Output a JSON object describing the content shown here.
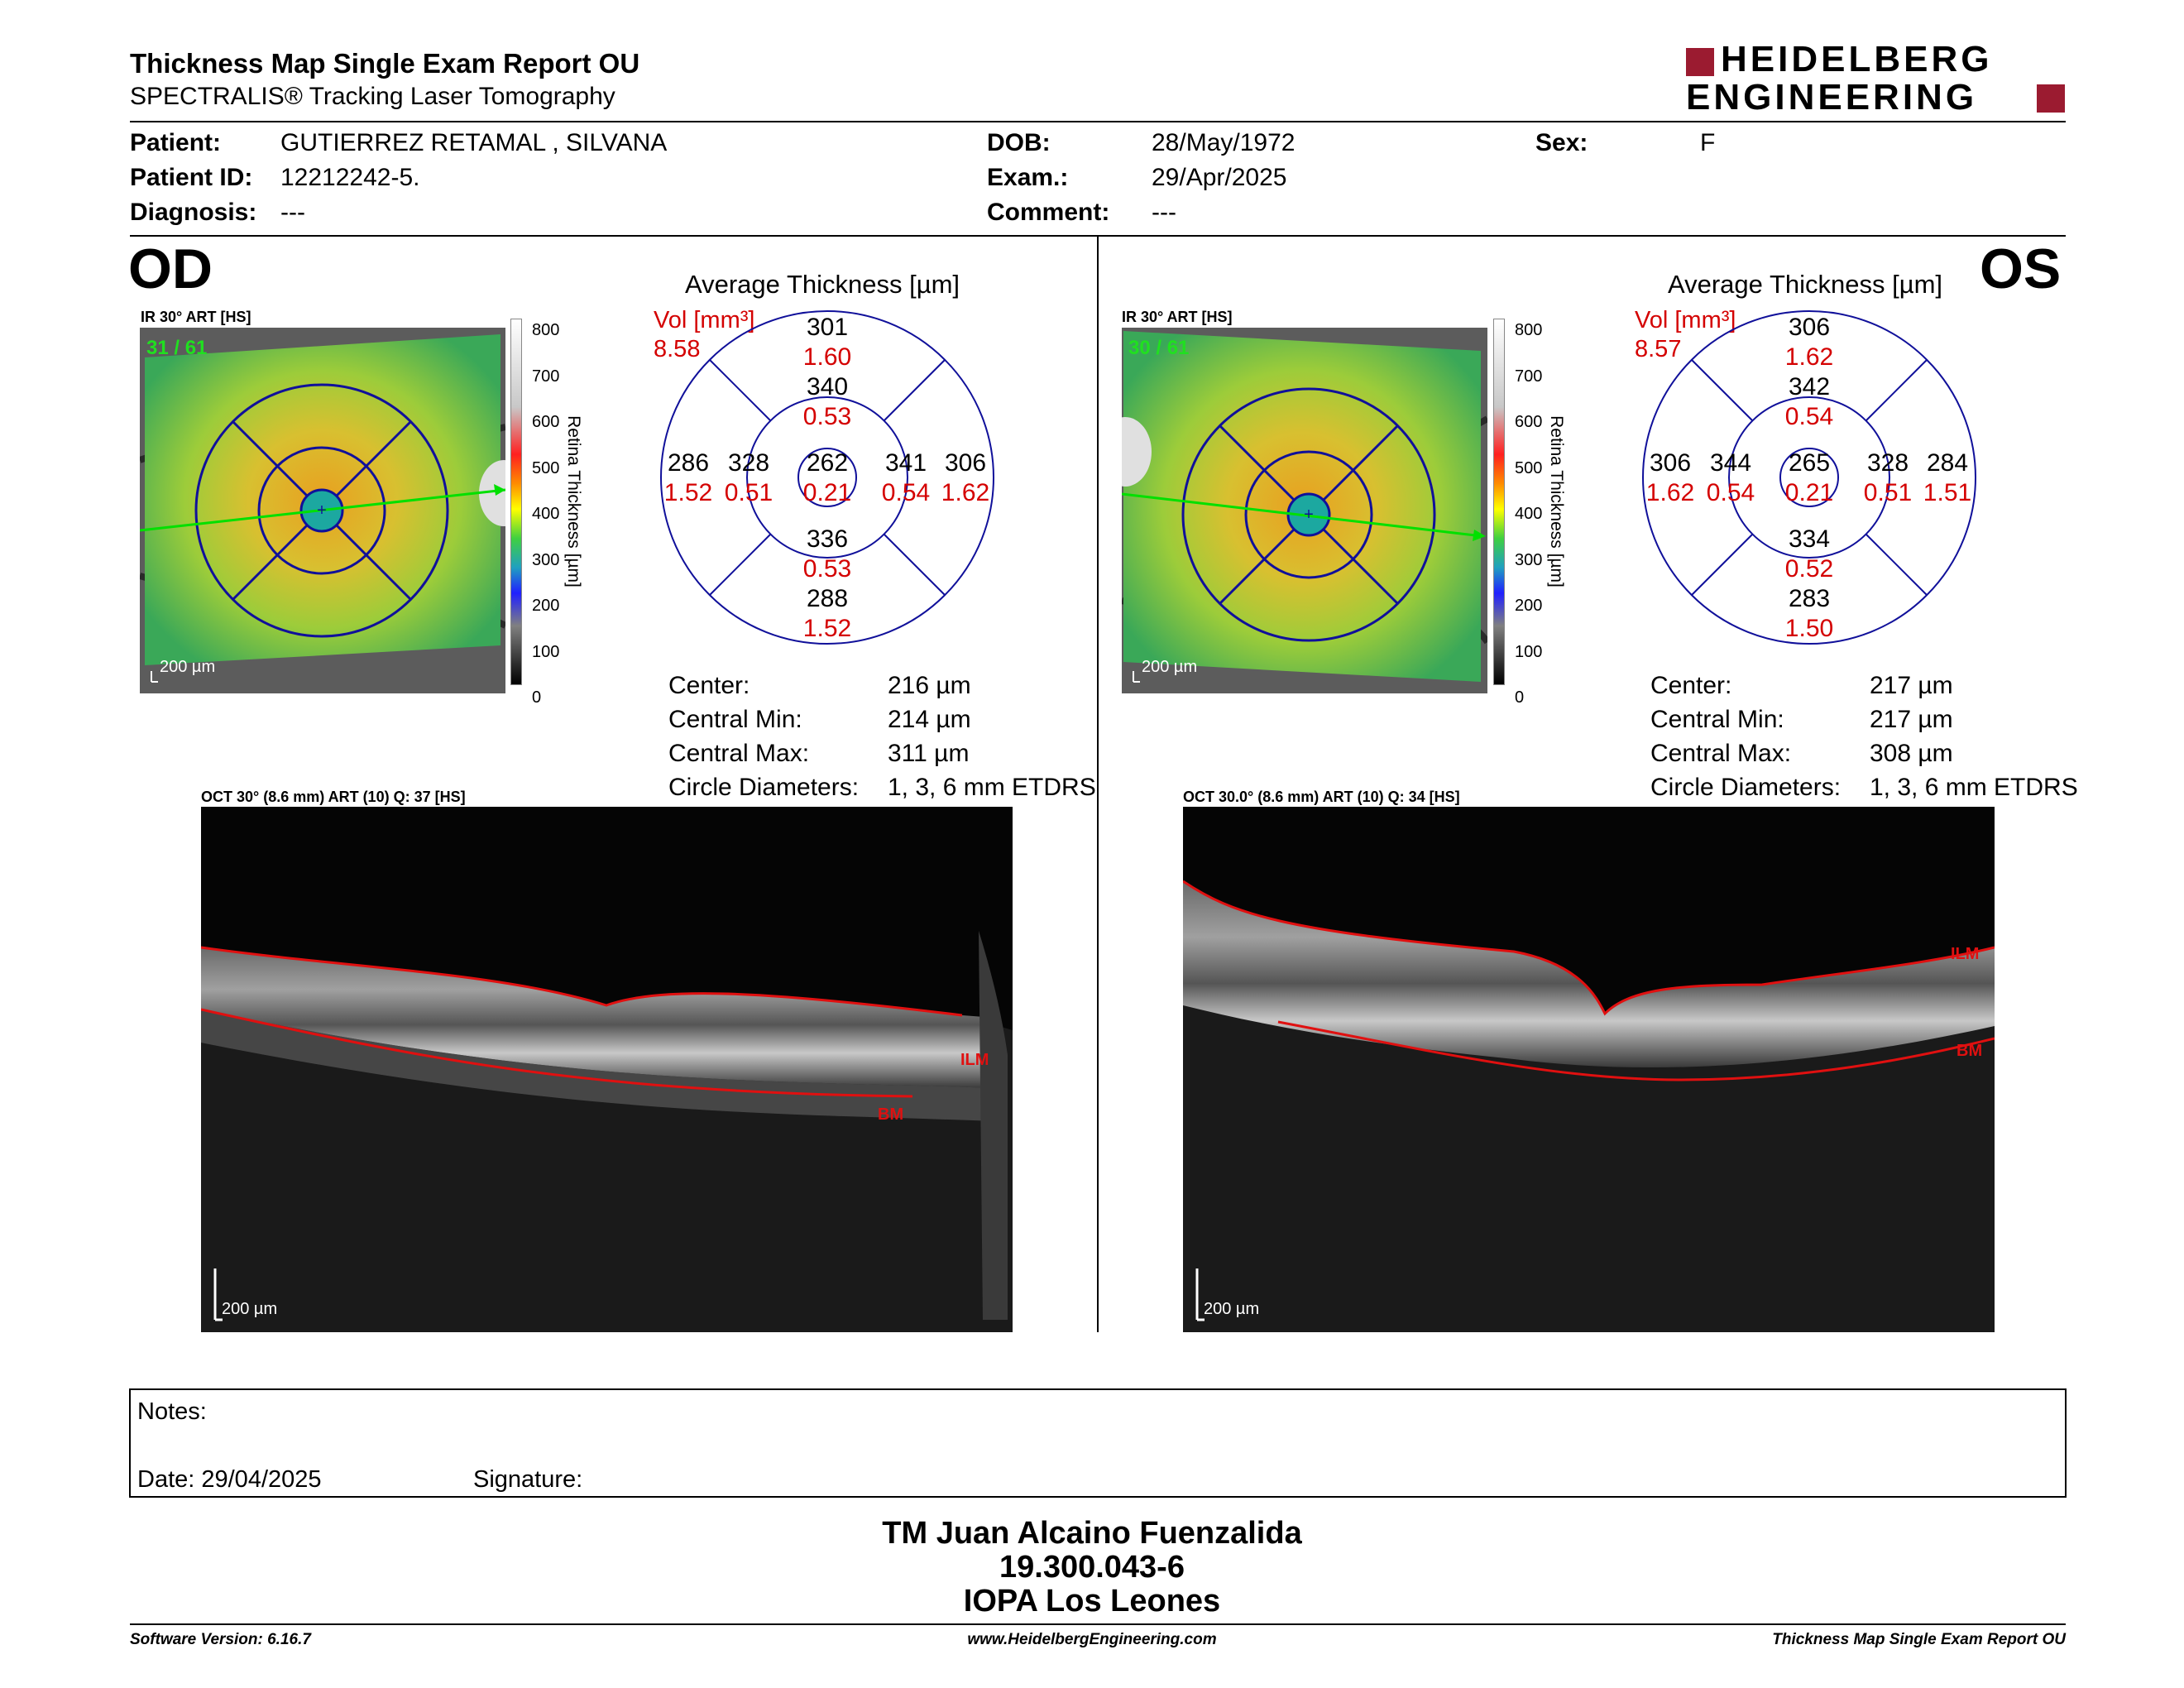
{
  "header": {
    "title": "Thickness Map Single Exam Report OU",
    "subtitle": "SPECTRALIS® Tracking Laser Tomography",
    "logo_line1": "HEIDELBERG",
    "logo_line2": "ENGINEERING"
  },
  "patient": {
    "patient_label": "Patient:",
    "patient_value": "GUTIERREZ RETAMAL , SILVANA",
    "id_label": "Patient ID:",
    "id_value": "12212242-5.",
    "diagnosis_label": "Diagnosis:",
    "diagnosis_value": "---",
    "dob_label": "DOB:",
    "dob_value": "28/May/1972",
    "exam_label": "Exam.:",
    "exam_value": "29/Apr/2025",
    "comment_label": "Comment:",
    "comment_value": "---",
    "sex_label": "Sex:",
    "sex_value": "F"
  },
  "colors": {
    "red": "#d40000",
    "grid_blue": "#10109a",
    "scan_green": "#00e000",
    "brand": "#9b1b30"
  },
  "colorbar": {
    "ticks": [
      "800",
      "700",
      "600",
      "500",
      "400",
      "300",
      "200",
      "100",
      "0"
    ],
    "label": "Retina Thickness [µm]"
  },
  "od": {
    "eye_label": "OD",
    "ir_label": "IR 30° ART [HS]",
    "frame_counter": "31 / 61",
    "scale_label": "200 µm",
    "avg_title": "Average Thickness [µm]",
    "vol_label": "Vol [mm³]",
    "vol_total": "8.58",
    "etdrs": {
      "sup_outer": {
        "t": "301",
        "v": "1.60"
      },
      "sup_inner": {
        "t": "340",
        "v": "0.53"
      },
      "left_outer": {
        "t": "286",
        "v": "1.52"
      },
      "left_inner": {
        "t": "328",
        "v": "0.51"
      },
      "center": {
        "t": "262",
        "v": "0.21"
      },
      "right_inner": {
        "t": "341",
        "v": "0.54"
      },
      "right_outer": {
        "t": "306",
        "v": "1.62"
      },
      "inf_inner": {
        "t": "336",
        "v": "0.53"
      },
      "inf_outer": {
        "t": "288",
        "v": "1.52"
      }
    },
    "stats": [
      {
        "label": "Center:",
        "value": "216 µm"
      },
      {
        "label": "Central Min:",
        "value": "214 µm"
      },
      {
        "label": "Central Max:",
        "value": "311 µm"
      },
      {
        "label": "Circle Diameters:",
        "value": "1, 3, 6 mm ETDRS"
      }
    ],
    "oct_label": "OCT 30° (8.6 mm) ART (10) Q: 37 [HS]",
    "oct_scale": "200 µm",
    "ilm": "ILM",
    "bm": "BM"
  },
  "os": {
    "eye_label": "OS",
    "ir_label": "IR 30° ART [HS]",
    "frame_counter": "30 / 61",
    "scale_label": "200 µm",
    "avg_title": "Average Thickness [µm]",
    "vol_label": "Vol [mm³]",
    "vol_total": "8.57",
    "etdrs": {
      "sup_outer": {
        "t": "306",
        "v": "1.62"
      },
      "sup_inner": {
        "t": "342",
        "v": "0.54"
      },
      "left_outer": {
        "t": "306",
        "v": "1.62"
      },
      "left_inner": {
        "t": "344",
        "v": "0.54"
      },
      "center": {
        "t": "265",
        "v": "0.21"
      },
      "right_inner": {
        "t": "328",
        "v": "0.51"
      },
      "right_outer": {
        "t": "284",
        "v": "1.51"
      },
      "inf_inner": {
        "t": "334",
        "v": "0.52"
      },
      "inf_outer": {
        "t": "283",
        "v": "1.50"
      }
    },
    "stats": [
      {
        "label": "Center:",
        "value": "217 µm"
      },
      {
        "label": "Central Min:",
        "value": "217 µm"
      },
      {
        "label": "Central Max:",
        "value": "308 µm"
      },
      {
        "label": "Circle Diameters:",
        "value": "1, 3, 6 mm ETDRS"
      }
    ],
    "oct_label": "OCT 30.0° (8.6 mm) ART (10) Q: 34 [HS]",
    "oct_scale": "200 µm",
    "ilm": "ILM",
    "bm": "BM"
  },
  "notes": {
    "notes_label": "Notes:",
    "date_label": "Date: 29/04/2025",
    "signature_label": "Signature:"
  },
  "signer": {
    "name": "TM Juan Alcaino Fuenzalida",
    "id": "19.300.043-6",
    "org": "IOPA Los Leones"
  },
  "footer": {
    "software": "Software Version: 6.16.7",
    "website": "www.HeidelbergEngineering.com",
    "report": "Thickness Map Single Exam Report OU"
  }
}
